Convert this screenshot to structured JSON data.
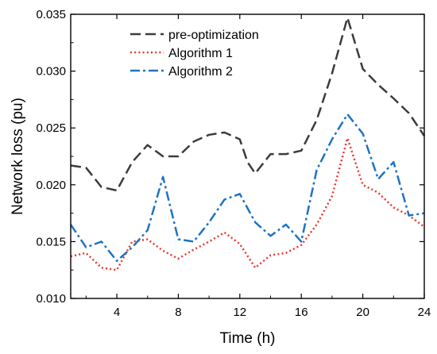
{
  "chart_data": {
    "type": "line",
    "xlabel": "Time (h)",
    "ylabel": "Network loss (pu)",
    "xlim": [
      1,
      24
    ],
    "ylim": [
      0.01,
      0.035
    ],
    "xticks": [
      4,
      8,
      12,
      16,
      20,
      24
    ],
    "xtick_labels": [
      "4",
      "8",
      "12",
      "16",
      "20",
      "24"
    ],
    "yticks": [
      0.01,
      0.015,
      0.02,
      0.025,
      0.03,
      0.035
    ],
    "ytick_labels": [
      "0.010",
      "0.015",
      "0.020",
      "0.025",
      "0.030",
      "0.035"
    ],
    "legend_position": "top-left",
    "series": [
      {
        "name": "pre-optimization",
        "color": "#3c3c3c",
        "style": "dashed",
        "x": [
          1,
          2,
          3,
          4,
          5,
          6,
          7,
          8,
          9,
          10,
          11,
          12,
          12.5,
          13,
          14,
          15,
          16,
          17,
          18,
          19,
          20,
          21,
          22,
          23,
          24
        ],
        "y": [
          0.0217,
          0.0215,
          0.0198,
          0.0195,
          0.022,
          0.0235,
          0.0225,
          0.0225,
          0.0238,
          0.0244,
          0.0246,
          0.024,
          0.022,
          0.021,
          0.0227,
          0.0227,
          0.023,
          0.0257,
          0.0298,
          0.0347,
          0.0302,
          0.0288,
          0.0276,
          0.0263,
          0.0243
        ]
      },
      {
        "name": "Algorithm 1",
        "color": "#e8382e",
        "style": "dotted",
        "x": [
          1,
          2,
          3,
          4,
          5,
          6,
          7,
          8,
          9,
          10,
          11,
          12,
          13,
          14,
          15,
          16,
          17,
          18,
          19,
          20,
          21,
          22,
          23,
          24
        ],
        "y": [
          0.0137,
          0.014,
          0.0127,
          0.0125,
          0.015,
          0.0152,
          0.0142,
          0.0135,
          0.0143,
          0.015,
          0.0158,
          0.0148,
          0.0127,
          0.0138,
          0.014,
          0.0147,
          0.0165,
          0.019,
          0.0241,
          0.02,
          0.0193,
          0.018,
          0.0173,
          0.0163
        ]
      },
      {
        "name": "Algorithm 2",
        "color": "#1f73c4",
        "style": "dashdot",
        "x": [
          1,
          2,
          3,
          4,
          5,
          6,
          7,
          8,
          9,
          10,
          11,
          12,
          13,
          14,
          15,
          16,
          17,
          18,
          19,
          20,
          21,
          22,
          23,
          24
        ],
        "y": [
          0.0165,
          0.0145,
          0.015,
          0.0133,
          0.0145,
          0.016,
          0.0207,
          0.0152,
          0.015,
          0.0167,
          0.0187,
          0.0192,
          0.0167,
          0.0155,
          0.0165,
          0.015,
          0.0213,
          0.024,
          0.0262,
          0.0245,
          0.0205,
          0.022,
          0.0173,
          0.0175
        ]
      }
    ]
  }
}
